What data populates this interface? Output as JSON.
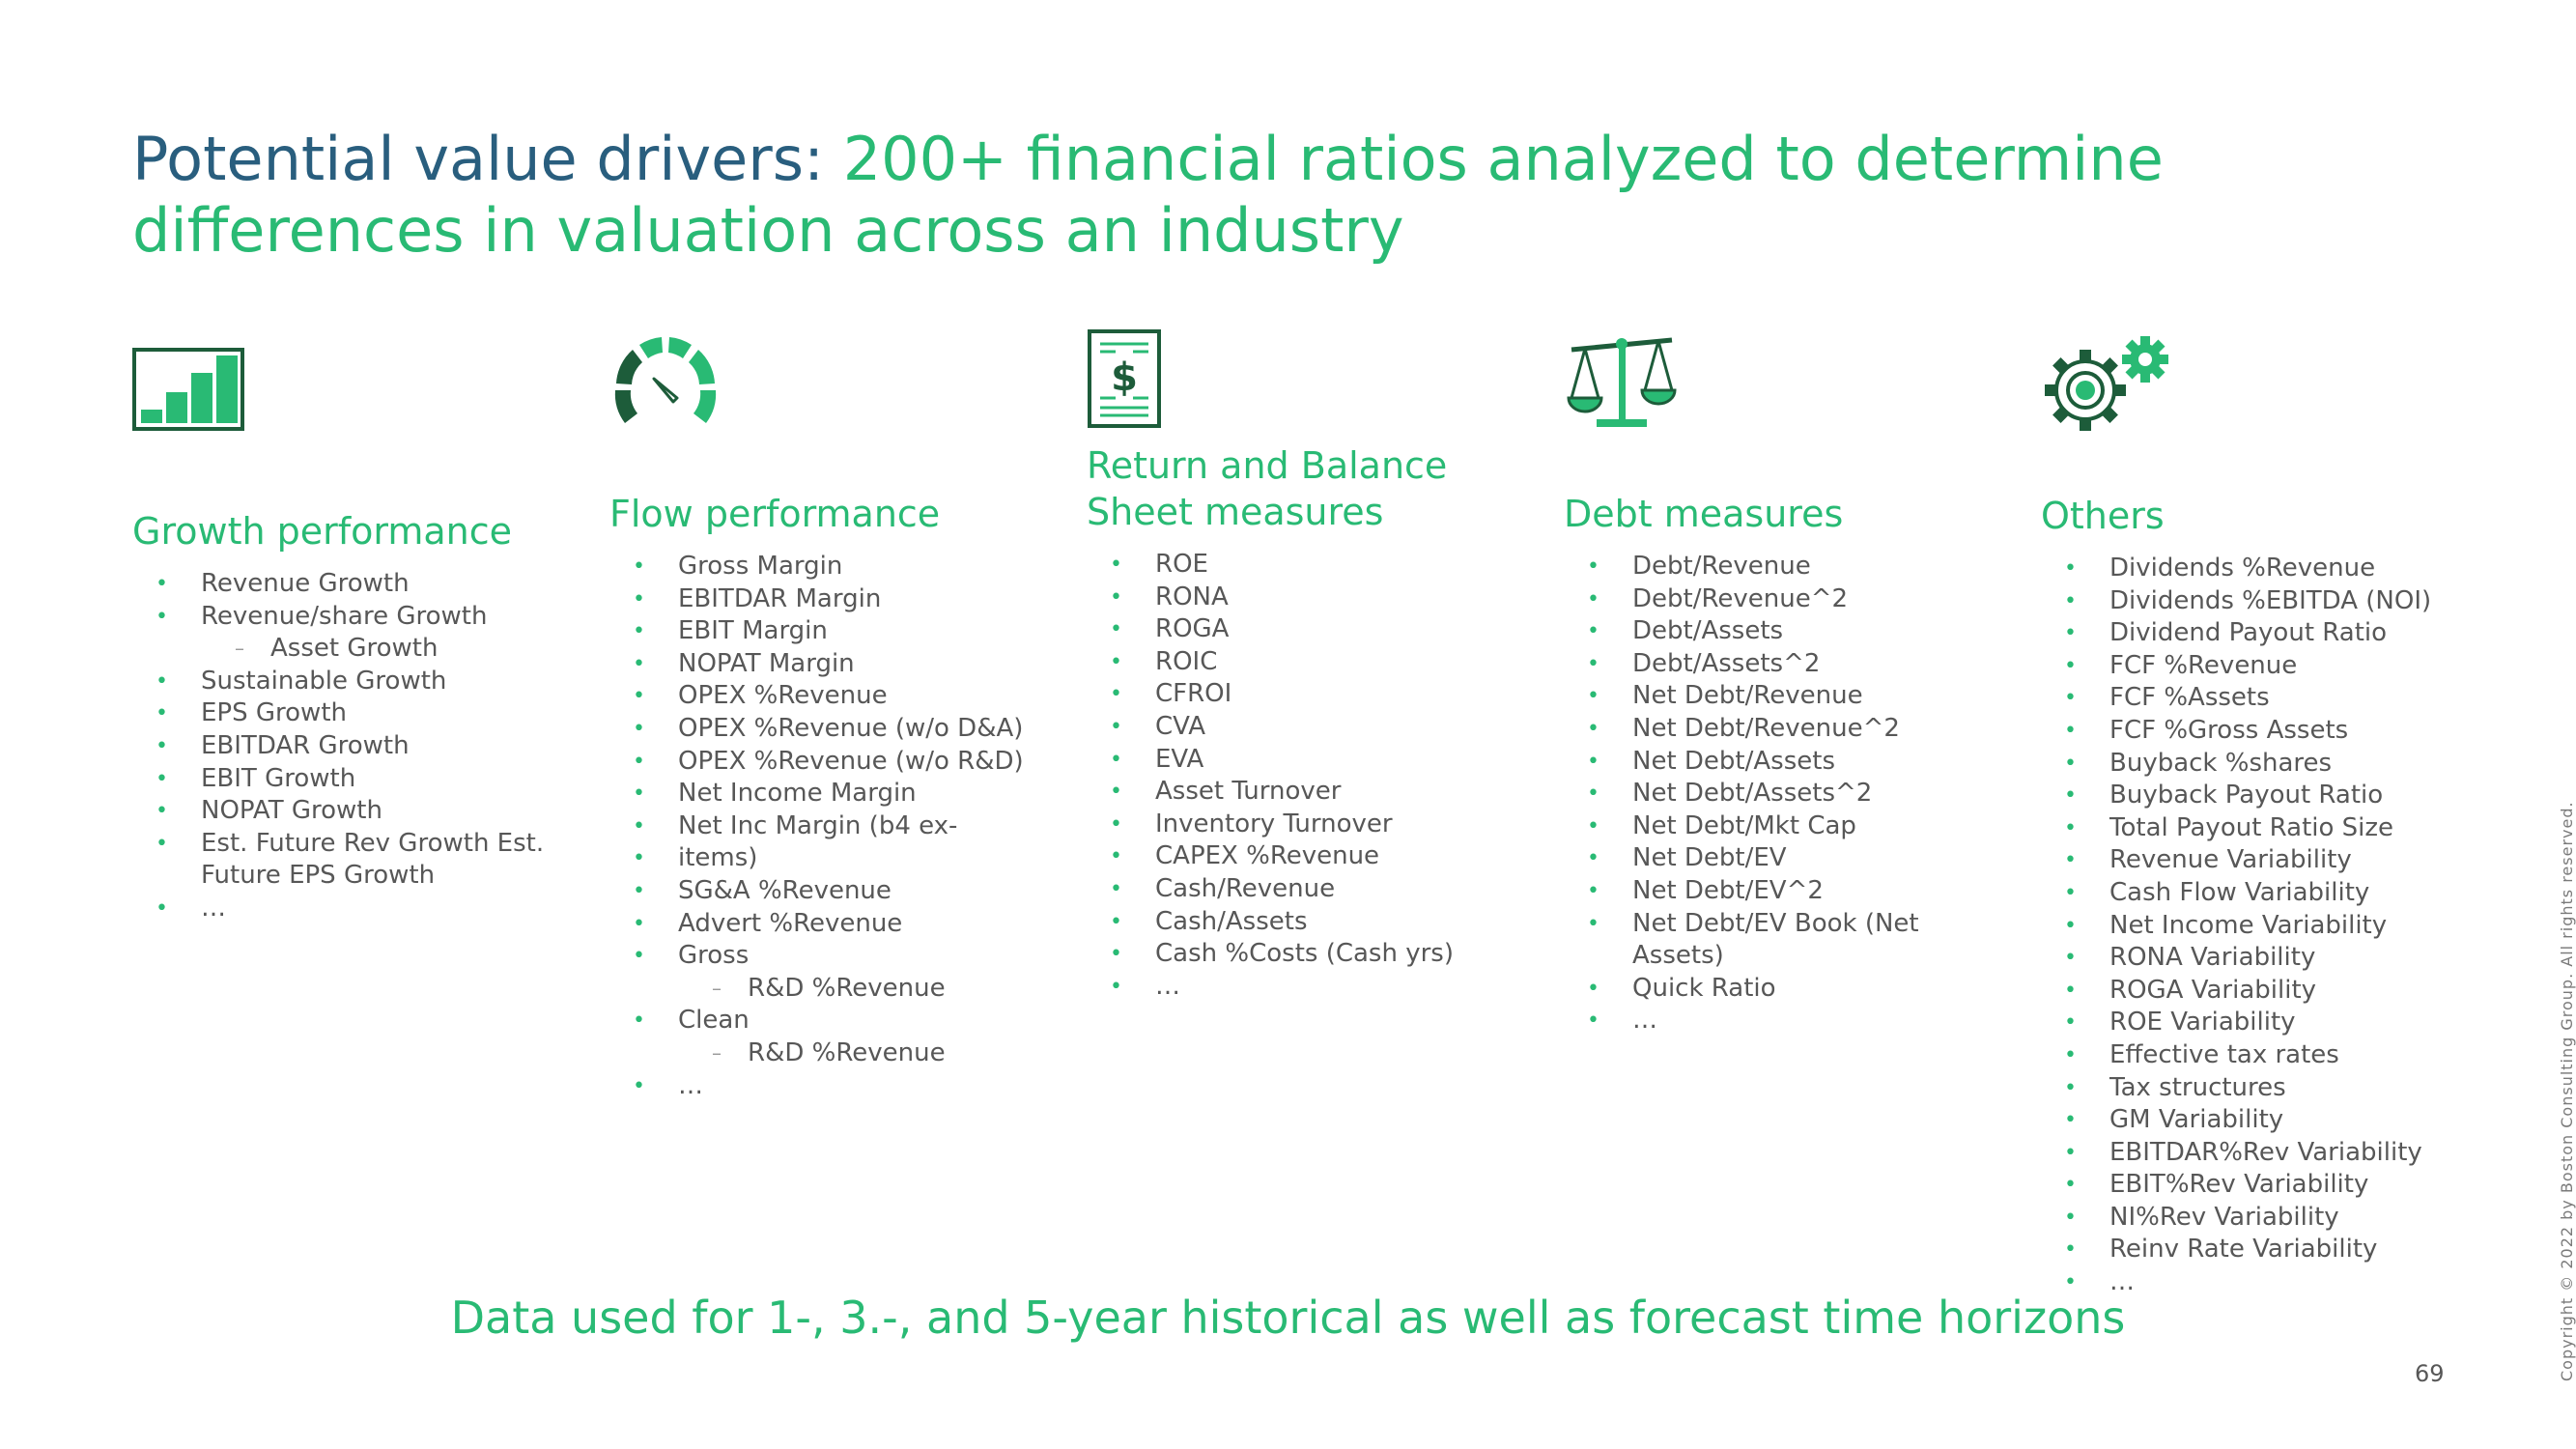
{
  "title": {
    "lead": "Potential value drivers:",
    "rest": "200+ financial ratios analyzed to determine differences in valuation across an industry"
  },
  "colors": {
    "blue": "#295e7e",
    "green": "#29ba74",
    "dark_green": "#1d5c3a",
    "text": "#575757"
  },
  "columns": [
    {
      "icon": "bar-chart-icon",
      "heading": "Growth performance",
      "items": [
        {
          "text": "Revenue Growth"
        },
        {
          "text": "Revenue/share Growth"
        },
        {
          "text": "Asset Growth",
          "sub": true
        },
        {
          "text": "Sustainable Growth"
        },
        {
          "text": "EPS Growth"
        },
        {
          "text": "EBITDAR Growth"
        },
        {
          "text": "EBIT Growth"
        },
        {
          "text": "NOPAT Growth"
        },
        {
          "text": "Est. Future Rev Growth Est. Future EPS Growth"
        },
        {
          "text": "…"
        }
      ]
    },
    {
      "icon": "speedometer-icon",
      "heading": "Flow performance",
      "items": [
        {
          "text": "Gross Margin"
        },
        {
          "text": "EBITDAR Margin"
        },
        {
          "text": "EBIT Margin"
        },
        {
          "text": "NOPAT Margin"
        },
        {
          "text": "OPEX %Revenue"
        },
        {
          "text": "OPEX %Revenue (w/o D&A)"
        },
        {
          "text": "OPEX %Revenue (w/o R&D)"
        },
        {
          "text": "Net Income Margin"
        },
        {
          "text": "Net Inc Margin (b4 ex-"
        },
        {
          "text": "items)"
        },
        {
          "text": "SG&A %Revenue"
        },
        {
          "text": "Advert %Revenue"
        },
        {
          "text": "Gross"
        },
        {
          "text": "R&D %Revenue",
          "sub": true
        },
        {
          "text": "Clean"
        },
        {
          "text": "R&D %Revenue",
          "sub": true
        },
        {
          "text": "…"
        }
      ]
    },
    {
      "icon": "dollar-document-icon",
      "heading": "Return and Balance Sheet measures",
      "items": [
        {
          "text": "ROE"
        },
        {
          "text": "RONA"
        },
        {
          "text": "ROGA"
        },
        {
          "text": "ROIC"
        },
        {
          "text": "CFROI"
        },
        {
          "text": "CVA"
        },
        {
          "text": "EVA"
        },
        {
          "text": "Asset Turnover"
        },
        {
          "text": "Inventory Turnover"
        },
        {
          "text": "CAPEX %Revenue"
        },
        {
          "text": "Cash/Revenue"
        },
        {
          "text": "Cash/Assets"
        },
        {
          "text": "Cash %Costs (Cash yrs)"
        },
        {
          "text": "…"
        }
      ]
    },
    {
      "icon": "balance-scale-icon",
      "heading": "Debt measures",
      "items": [
        {
          "text": "Debt/Revenue"
        },
        {
          "text": "Debt/Revenue^2"
        },
        {
          "text": "Debt/Assets"
        },
        {
          "text": "Debt/Assets^2"
        },
        {
          "text": "Net Debt/Revenue"
        },
        {
          "text": "Net Debt/Revenue^2"
        },
        {
          "text": "Net Debt/Assets"
        },
        {
          "text": "Net Debt/Assets^2"
        },
        {
          "text": "Net Debt/Mkt Cap"
        },
        {
          "text": "Net Debt/EV"
        },
        {
          "text": "Net Debt/EV^2"
        },
        {
          "text": "Net Debt/EV Book (Net Assets)"
        },
        {
          "text": "Quick Ratio"
        },
        {
          "text": "…"
        }
      ]
    },
    {
      "icon": "gears-icon",
      "heading": "Others",
      "items": [
        {
          "text": "Dividends %Revenue"
        },
        {
          "text": "Dividends %EBITDA (NOI)"
        },
        {
          "text": "Dividend Payout Ratio"
        },
        {
          "text": "FCF %Revenue"
        },
        {
          "text": "FCF %Assets"
        },
        {
          "text": "FCF %Gross Assets"
        },
        {
          "text": "Buyback %shares"
        },
        {
          "text": "Buyback Payout Ratio"
        },
        {
          "text": "Total Payout Ratio Size"
        },
        {
          "text": "Revenue Variability"
        },
        {
          "text": "Cash Flow Variability"
        },
        {
          "text": "Net Income Variability"
        },
        {
          "text": "RONA Variability"
        },
        {
          "text": "ROGA Variability"
        },
        {
          "text": "ROE Variability"
        },
        {
          "text": "Effective tax rates"
        },
        {
          "text": "Tax structures"
        },
        {
          "text": "GM Variability"
        },
        {
          "text": "EBITDAR%Rev Variability"
        },
        {
          "text": "EBIT%Rev Variability"
        },
        {
          "text": "NI%Rev Variability"
        },
        {
          "text": "Reinv Rate Variability"
        },
        {
          "text": "…"
        }
      ]
    }
  ],
  "footer_note": "Data used for 1-, 3.-, and 5-year historical as well as forecast time horizons",
  "page_number": "69",
  "copyright": "Copyright © 2022 by Boston Consulting Group. All rights reserved."
}
